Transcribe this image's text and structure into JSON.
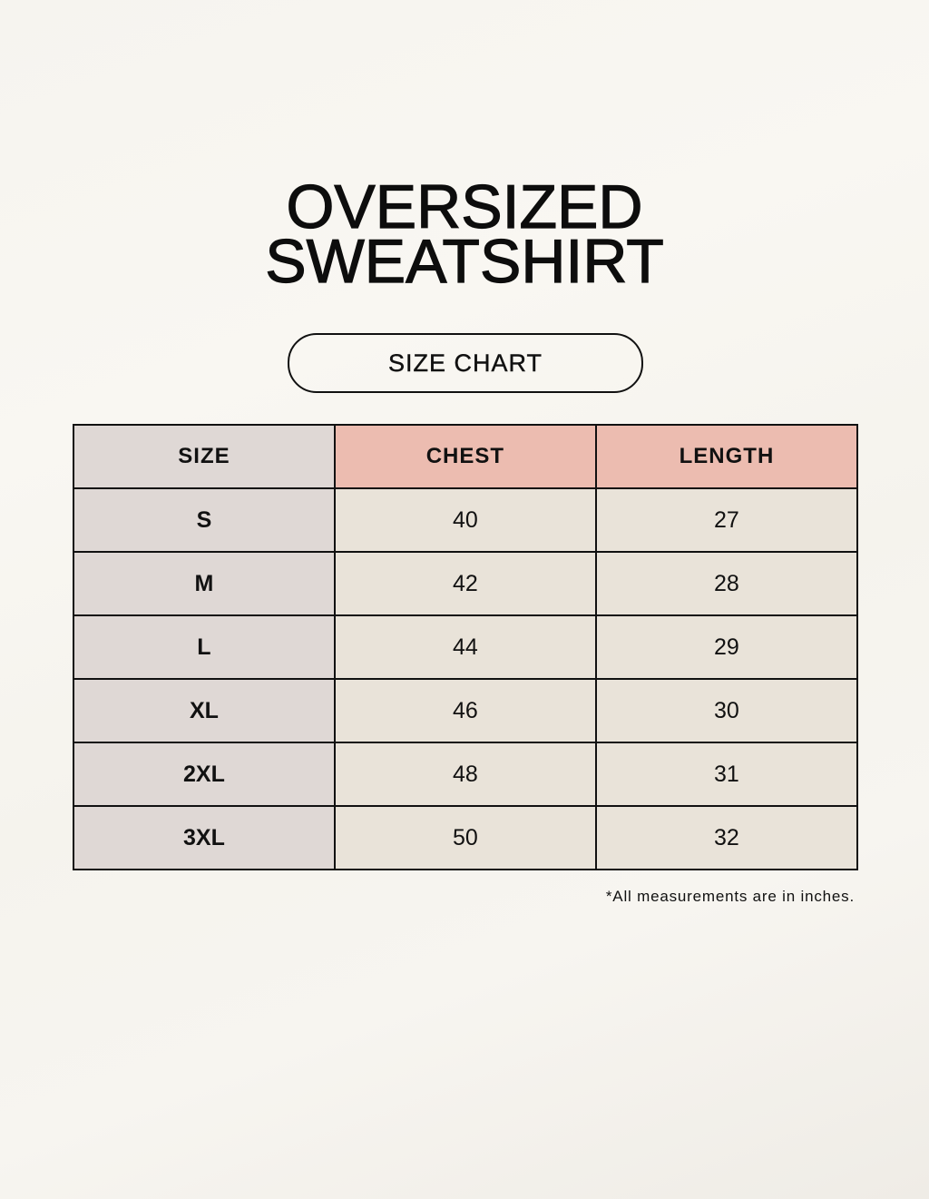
{
  "title": {
    "line1": "OVERSIZED",
    "line2": "SWEATSHIRT"
  },
  "subtitle": "SIZE CHART",
  "colors": {
    "size_column_bg": "#dfd8d5",
    "header_accent_bg": "#ecbcb0",
    "value_cell_bg": "#e9e3d9",
    "border": "#111111"
  },
  "table": {
    "headers": [
      "SIZE",
      "CHEST",
      "LENGTH"
    ],
    "rows": [
      {
        "size": "S",
        "chest": "40",
        "length": "27"
      },
      {
        "size": "M",
        "chest": "42",
        "length": "28"
      },
      {
        "size": "L",
        "chest": "44",
        "length": "29"
      },
      {
        "size": "XL",
        "chest": "46",
        "length": "30"
      },
      {
        "size": "2XL",
        "chest": "48",
        "length": "31"
      },
      {
        "size": "3XL",
        "chest": "50",
        "length": "32"
      }
    ]
  },
  "footnote": "*All measurements are in inches."
}
